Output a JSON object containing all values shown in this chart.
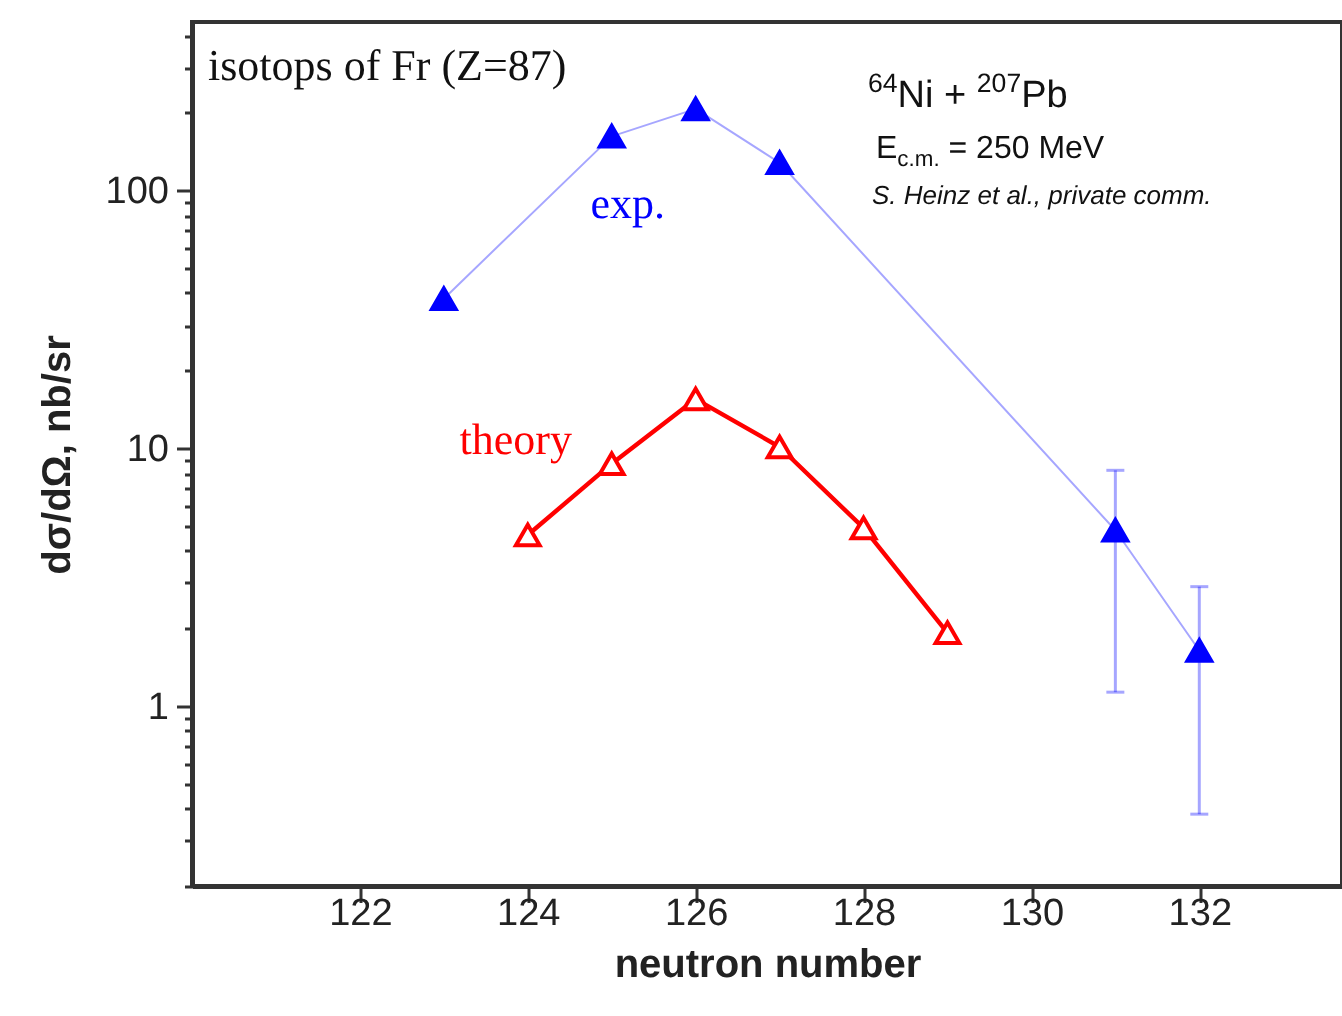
{
  "chart_data": {
    "type": "line",
    "xlabel": "neutron number",
    "ylabel": "dσ/dΩ, nb/sr",
    "annotations": [
      "isotops of Fr (Z=87)",
      "$^{64}$Ni + $^{207}$Pb",
      "E$_{c.m.}$ = 250 MeV",
      "S. Heinz et al., private comm."
    ],
    "series": [
      {
        "name": "exp.",
        "color": "#0000ff",
        "x": [
          123,
          125,
          126,
          127,
          131,
          132
        ],
        "values": [
          38,
          162,
          207,
          128,
          4.8,
          1.64
        ],
        "errors": [
          null,
          null,
          null,
          null,
          [
            1.13,
            8.2
          ],
          [
            0.38,
            2.9
          ]
        ]
      },
      {
        "name": "theory",
        "color": "#ff0000",
        "x": [
          124,
          125,
          126,
          127,
          128,
          129
        ],
        "values": [
          4.6,
          8.7,
          15.5,
          10.1,
          4.9,
          1.92
        ]
      }
    ],
    "xlim": [
      120,
      133.7
    ],
    "xticks": [
      122,
      124,
      126,
      128,
      130,
      132
    ],
    "ylim": [
      0.2,
      450
    ],
    "log": "y",
    "yticks": [
      {
        "value": 0.2,
        "label": null
      },
      {
        "value": 0.3,
        "label": null
      },
      {
        "value": 0.4,
        "label": null
      },
      {
        "value": 0.5,
        "label": null
      },
      {
        "value": 0.6,
        "label": null
      },
      {
        "value": 0.7,
        "label": null
      },
      {
        "value": 0.8,
        "label": null
      },
      {
        "value": 0.9,
        "label": null
      },
      1,
      {
        "value": 2,
        "label": null
      },
      {
        "value": 3,
        "label": null
      },
      {
        "value": 4,
        "label": null
      },
      {
        "value": 5,
        "label": null
      },
      {
        "value": 6,
        "label": null
      },
      {
        "value": 7,
        "label": null
      },
      {
        "value": 8,
        "label": null
      },
      {
        "value": 9,
        "label": null
      },
      10,
      {
        "value": 20,
        "label": null
      },
      {
        "value": 30,
        "label": null
      },
      {
        "value": 40,
        "label": null
      },
      {
        "value": 50,
        "label": null
      },
      {
        "value": 60,
        "label": null
      },
      {
        "value": 70,
        "label": null
      },
      {
        "value": 80,
        "label": null
      },
      {
        "value": 90,
        "label": null
      },
      100,
      {
        "value": 200,
        "label": null
      },
      {
        "value": 300,
        "label": null
      },
      {
        "value": 400,
        "label": null
      }
    ],
    "grid": false,
    "marker": "triangle",
    "line_style": "solid"
  }
}
